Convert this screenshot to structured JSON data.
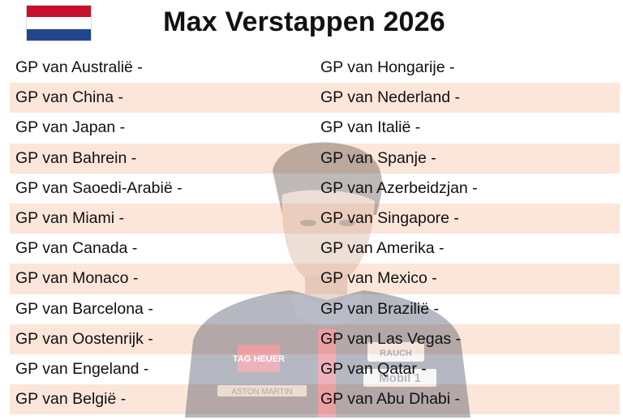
{
  "title": "Max Verstappen 2026",
  "flag": {
    "country": "Netherlands",
    "colors": [
      "#c8102e",
      "#ffffff",
      "#21468b"
    ]
  },
  "colors": {
    "row_shade": "#fbe6d9",
    "text": "#111111"
  },
  "background_image": {
    "description_icon": "driver-portrait",
    "sponsor_texts": [
      "TAG HEUER",
      "ASTON MARTIN",
      "Mobil 1",
      "RAUCH"
    ]
  },
  "races": {
    "left": [
      "GP van Australië -",
      "GP van China -",
      "GP van Japan -",
      "GP van Bahrein -",
      "GP van Saoedi-Arabië -",
      "GP van Miami -",
      "GP van Canada -",
      "GP van Monaco -",
      "GP van Barcelona -",
      "GP van Oostenrijk -",
      "GP van Engeland -",
      "GP van België  -"
    ],
    "right": [
      "GP van Hongarije -",
      "GP van Nederland -",
      "GP van Italië -",
      "GP van Spanje -",
      "GP van Azerbeidzjan -",
      "GP van Singapore -",
      "GP van Amerika -",
      "GP van Mexico -",
      "GP van Brazilië -",
      "GP van Las Vegas -",
      "GP van Qatar -",
      "GP van Abu Dhabi -"
    ]
  }
}
